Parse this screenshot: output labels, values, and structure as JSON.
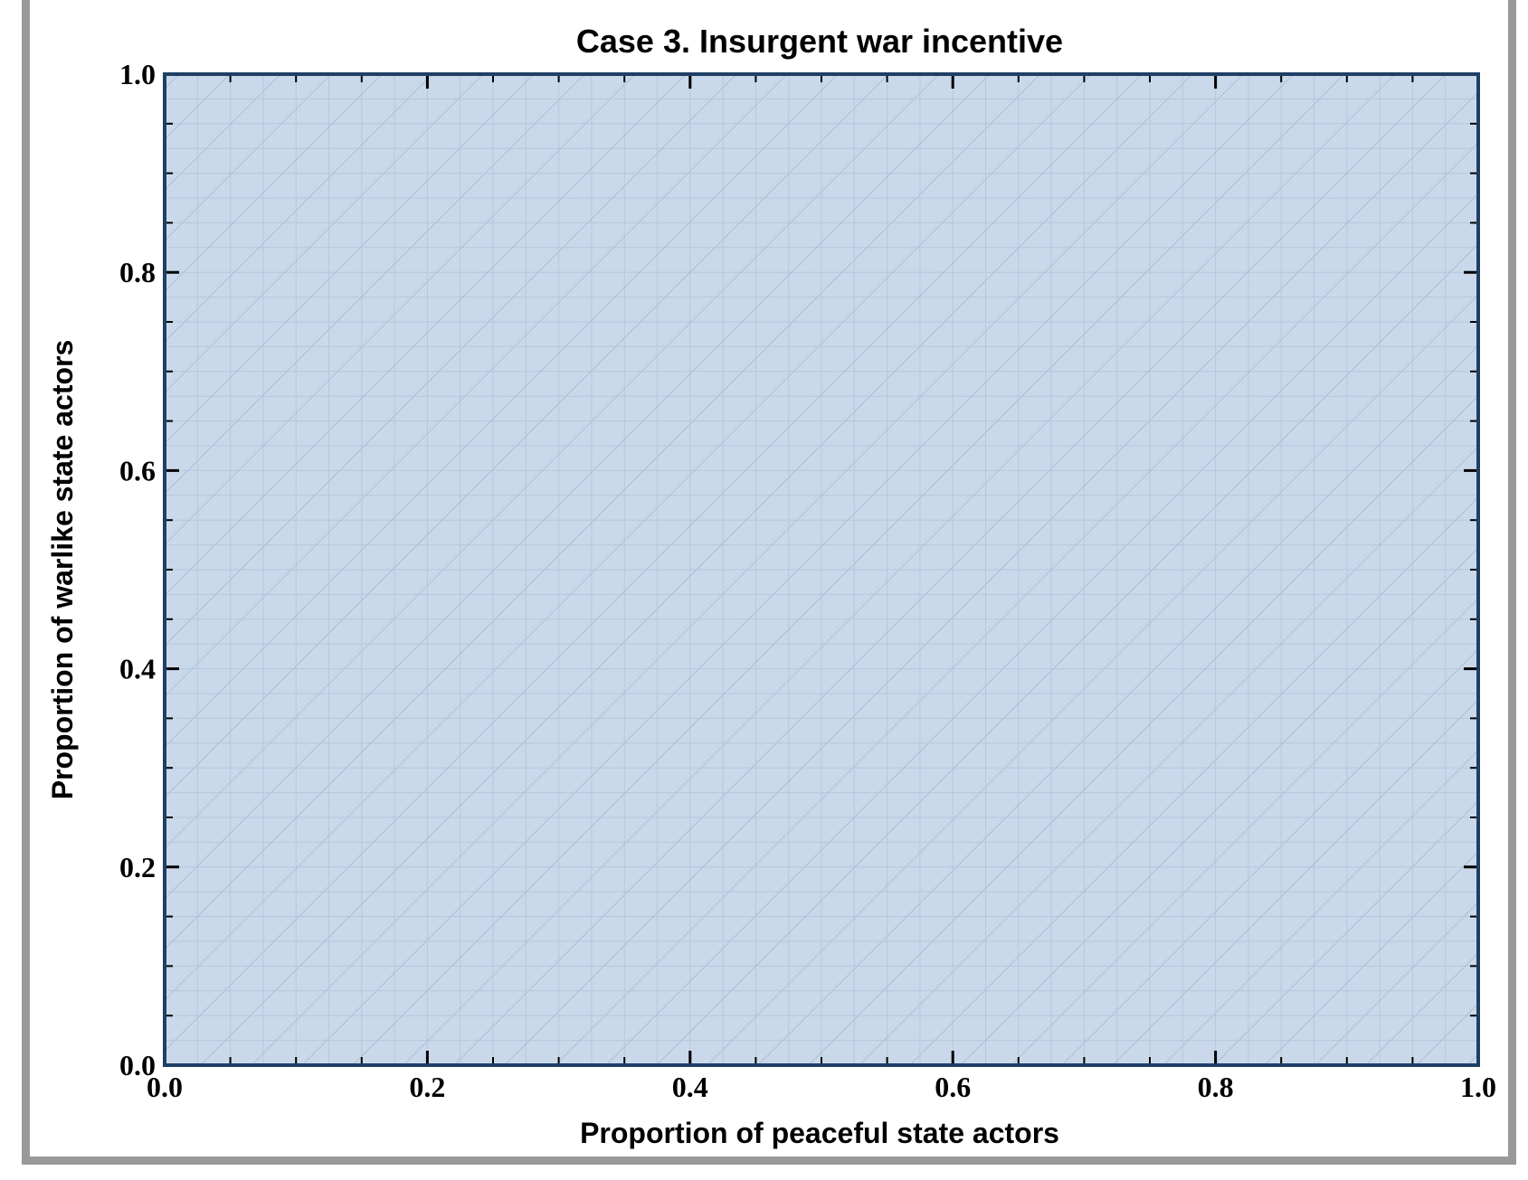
{
  "chart_data": {
    "type": "area",
    "title": "Case 3. Insurgent war incentive",
    "xlabel": "Proportion of peaceful state actors",
    "ylabel": "Proportion of warlike state actors",
    "xlim": [
      0.0,
      1.0
    ],
    "ylim": [
      0.0,
      1.0
    ],
    "x_ticks": [
      "0.0",
      "0.2",
      "0.4",
      "0.6",
      "0.8",
      "1.0"
    ],
    "y_ticks": [
      "0.0",
      "0.2",
      "0.4",
      "0.6",
      "0.8",
      "1.0"
    ],
    "region": {
      "x": [
        0.0,
        1.0
      ],
      "y": [
        0.0,
        1.0
      ],
      "fill_color": "#c9d8ea",
      "hatched": true
    },
    "grid": true,
    "frame_color": "#1f3f66",
    "border_color": "#999999"
  }
}
